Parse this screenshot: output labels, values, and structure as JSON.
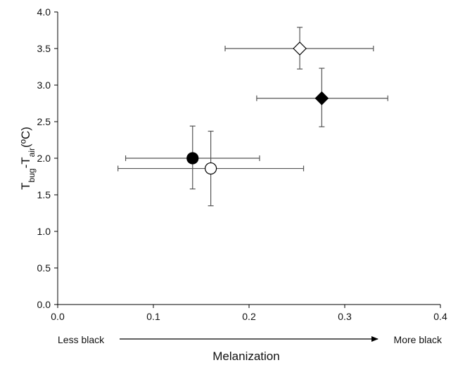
{
  "chart_data": {
    "type": "scatter",
    "xlabel": "Melanization",
    "ylabel": {
      "t1": "T",
      "s1": "bug",
      "sep": "-T",
      "s2": "air",
      "unit": "(ºC)"
    },
    "xlim": [
      0.0,
      0.4
    ],
    "ylim": [
      0.0,
      4.0
    ],
    "x_ticks": [
      "0.0",
      "0.1",
      "0.2",
      "0.3",
      "0.4"
    ],
    "y_ticks": [
      "0.0",
      "0.5",
      "1.0",
      "1.5",
      "2.0",
      "2.5",
      "3.0",
      "3.5",
      "4.0"
    ],
    "grid": false,
    "legend": null,
    "annotations": {
      "left": "Less black",
      "right": "More black"
    },
    "points": [
      {
        "marker": "circle",
        "fill": "#000000",
        "x": 0.141,
        "y": 2.0,
        "xerr": [
          0.071,
          0.211
        ],
        "yerr": [
          1.58,
          2.44
        ]
      },
      {
        "marker": "circle",
        "fill": "#ffffff",
        "x": 0.16,
        "y": 1.86,
        "xerr": [
          0.063,
          0.257
        ],
        "yerr": [
          1.35,
          2.37
        ]
      },
      {
        "marker": "diamond",
        "fill": "#ffffff",
        "x": 0.253,
        "y": 3.5,
        "xerr": [
          0.175,
          0.33
        ],
        "yerr": [
          3.22,
          3.79
        ]
      },
      {
        "marker": "diamond",
        "fill": "#000000",
        "x": 0.276,
        "y": 2.82,
        "xerr": [
          0.208,
          0.345
        ],
        "yerr": [
          2.43,
          3.23
        ]
      }
    ]
  }
}
